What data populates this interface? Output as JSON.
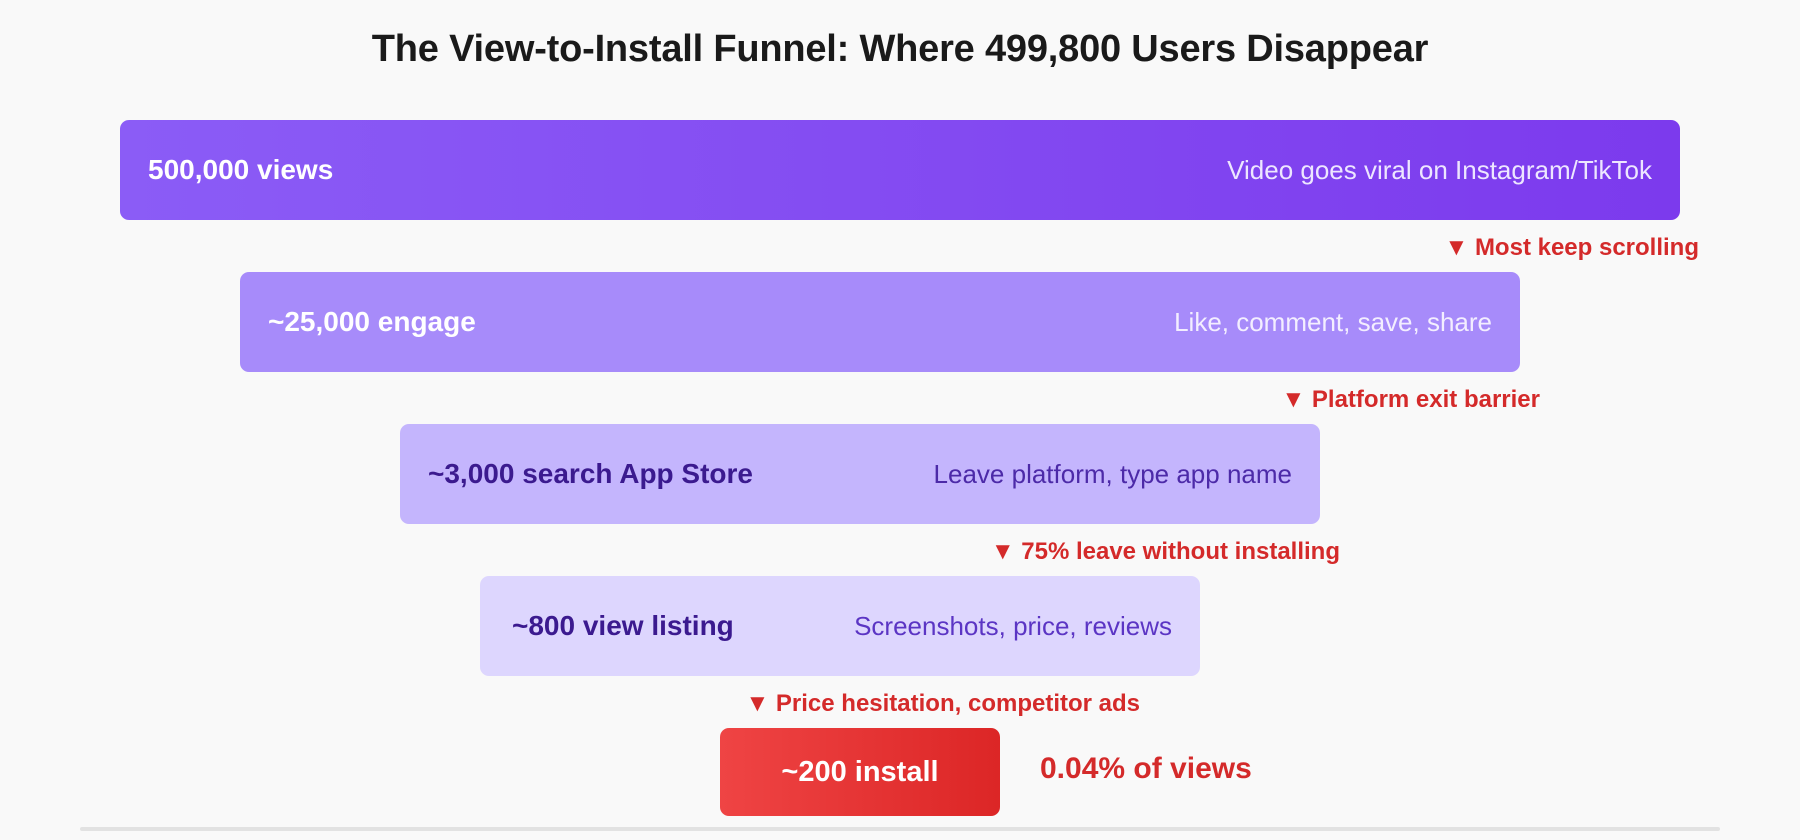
{
  "title": "The View-to-Install Funnel: Where 499,800 Users Disappear",
  "stages": [
    {
      "label": "500,000 views",
      "desc": "Video goes viral on Instagram/TikTok",
      "count": 500000
    },
    {
      "label": "~25,000 engage",
      "desc": "Like, comment, save, share",
      "count": 25000
    },
    {
      "label": "~3,000 search App Store",
      "desc": "Leave platform, type app name",
      "count": 3000
    },
    {
      "label": "~800 view listing",
      "desc": "Screenshots, price, reviews",
      "count": 800
    },
    {
      "label": "~200 install",
      "desc": "",
      "count": 200
    }
  ],
  "drops": [
    "▼ Most keep scrolling",
    "▼ Platform exit barrier",
    "▼ 75% leave without installing",
    "▼ Price hesitation, competitor ads"
  ],
  "conversion": "0.04% of views",
  "colors": {
    "stage1": "#7c3aed",
    "stage2": "#a78bfa",
    "stage3": "#c4b5fd",
    "stage4": "#ddd6fe",
    "stage5": "#dc2626",
    "drop_text": "#d42a2a"
  }
}
